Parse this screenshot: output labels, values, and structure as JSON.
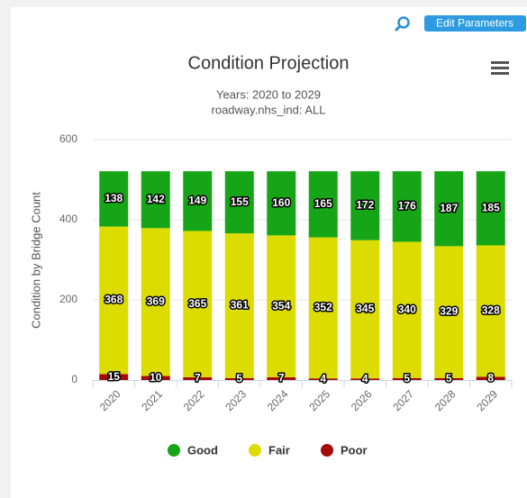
{
  "toolbar": {
    "button": "Edit Parameters"
  },
  "chart_data": {
    "type": "stacked_bar",
    "title": "Condition Projection",
    "subtitle": [
      "Years: 2020 to 2029",
      "roadway.nhs_ind: ALL"
    ],
    "y_label": "Condition by Bridge Count",
    "categories": [
      "2020",
      "2021",
      "2022",
      "2023",
      "2024",
      "2025",
      "2026",
      "2027",
      "2028",
      "2029"
    ],
    "series": [
      {
        "name": "Good",
        "color": "#16a516",
        "values": [
          138,
          142,
          149,
          155,
          160,
          165,
          172,
          176,
          187,
          185
        ]
      },
      {
        "name": "Fair",
        "color": "#dcdc00",
        "values": [
          368,
          369,
          365,
          361,
          354,
          352,
          345,
          340,
          329,
          328
        ]
      },
      {
        "name": "Poor",
        "color": "#a50a0a",
        "values": [
          15,
          10,
          7,
          5,
          7,
          4,
          4,
          5,
          5,
          8
        ]
      }
    ],
    "ylim": [
      0,
      600
    ],
    "yticks": [
      0,
      200,
      400,
      600
    ],
    "grid": true,
    "legend": "bottom"
  }
}
